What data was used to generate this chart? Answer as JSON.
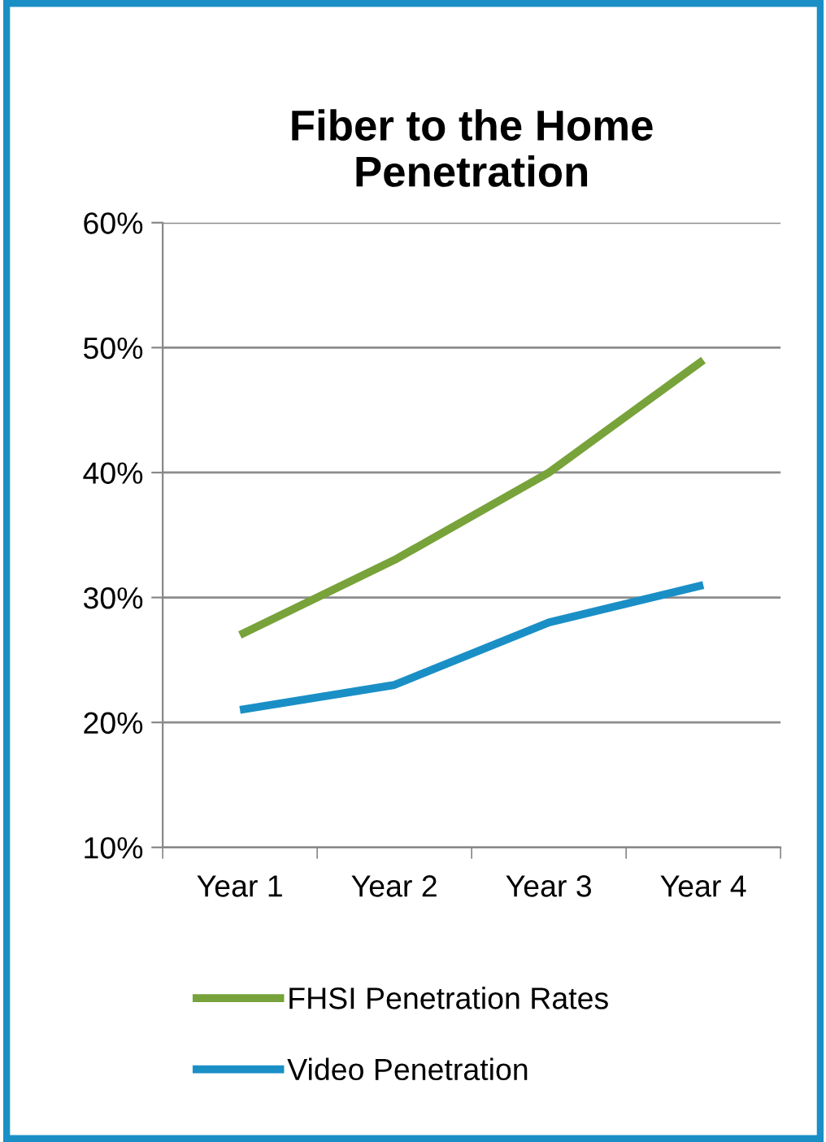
{
  "chart_data": {
    "type": "line",
    "title": "Fiber to the Home\nPenetration",
    "categories": [
      "Year 1",
      "Year 2",
      "Year 3",
      "Year 4"
    ],
    "series": [
      {
        "name": "FHSI Penetration Rates",
        "color": "#77a33a",
        "values": [
          27,
          33,
          40,
          49
        ]
      },
      {
        "name": "Video Penetration",
        "color": "#1a8fc6",
        "values": [
          21,
          23,
          28,
          31
        ]
      }
    ],
    "ylim": [
      10,
      60
    ],
    "yticks": [
      {
        "value": 10,
        "label": "10%"
      },
      {
        "value": 20,
        "label": "20%"
      },
      {
        "value": 30,
        "label": "30%"
      },
      {
        "value": 40,
        "label": "40%"
      },
      {
        "value": 50,
        "label": "50%"
      },
      {
        "value": 60,
        "label": "60%"
      }
    ],
    "grid": "y",
    "legend": "bottom",
    "marker": "none",
    "line_style": "solid"
  }
}
